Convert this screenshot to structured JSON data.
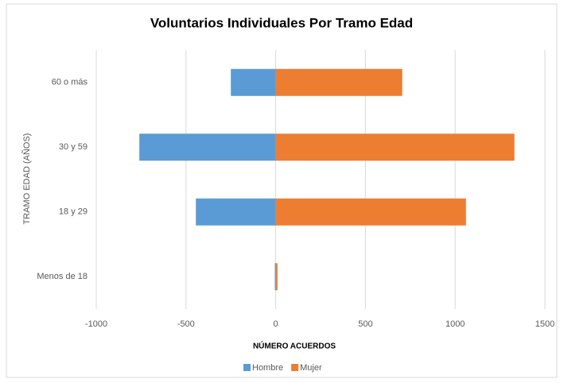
{
  "chart_data": {
    "type": "bar",
    "orientation": "horizontal",
    "stacked": true,
    "title": "Voluntarios Individuales Por Tramo Edad",
    "xlabel": "NÚMERO ACUERDOS",
    "ylabel": "TRAMO EDAD (AÑOS)",
    "categories": [
      "Menos de 18",
      "18 y 29",
      "30 y 59",
      "60 o más"
    ],
    "series": [
      {
        "name": "Hombre",
        "color": "#5b9bd5",
        "values": [
          -5,
          -445,
          -760,
          -250
        ]
      },
      {
        "name": "Mujer",
        "color": "#ed7d31",
        "values": [
          10,
          1060,
          1330,
          705
        ]
      }
    ],
    "xlim": [
      -1000,
      1500
    ],
    "xticks": [
      -1000,
      -500,
      0,
      500,
      1000,
      1500
    ],
    "grid": true,
    "legend": "bottom"
  }
}
